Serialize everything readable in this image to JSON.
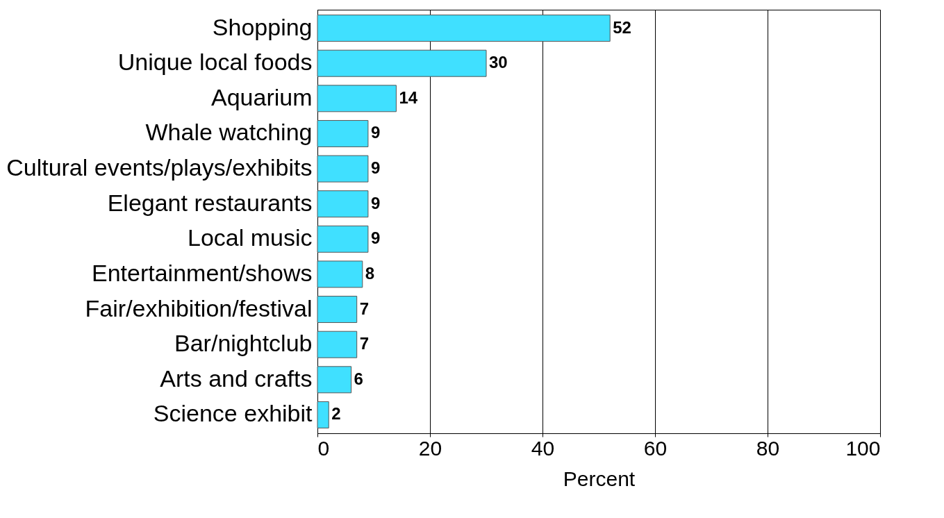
{
  "chart_data": {
    "type": "bar",
    "orientation": "horizontal",
    "xlabel": "Percent",
    "categories": [
      "Shopping",
      "Unique local foods",
      "Aquarium",
      "Whale watching",
      "Cultural events/plays/exhibits",
      "Elegant restaurants",
      "Local music",
      "Entertainment/shows",
      "Fair/exhibition/festival",
      "Bar/nightclub",
      "Arts and crafts",
      "Science exhibit"
    ],
    "values": [
      52,
      30,
      14,
      9,
      9,
      9,
      9,
      8,
      7,
      7,
      6,
      2
    ],
    "color": "#40e0ff",
    "xlim": [
      0,
      100
    ],
    "xticks": [
      0,
      20,
      40,
      60,
      80,
      100
    ],
    "grid": "x",
    "data_labels": true
  }
}
